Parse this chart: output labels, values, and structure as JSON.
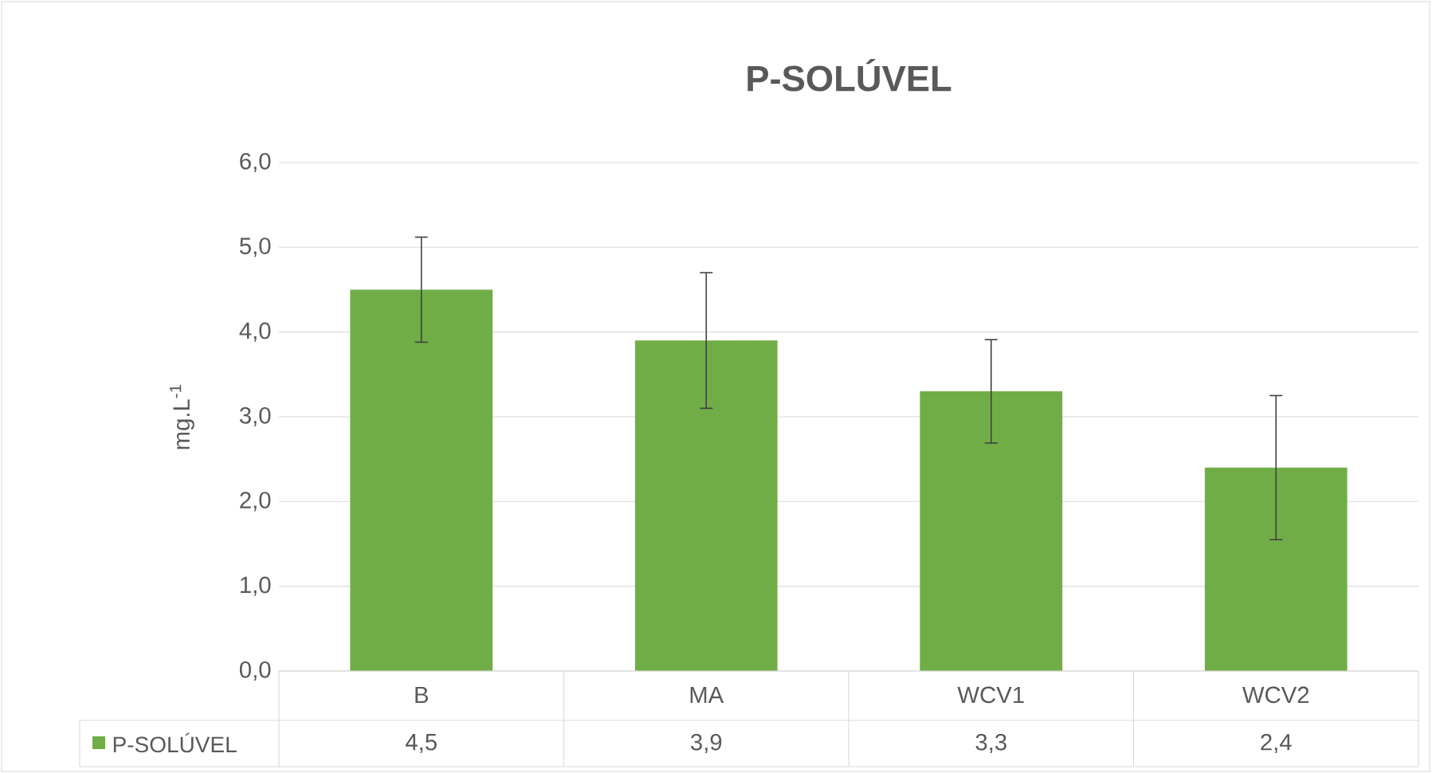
{
  "chart_data": {
    "type": "bar",
    "title": "P-SOLÚVEL",
    "ylabel": "mg.L$^{-1}$",
    "categories": [
      "B",
      "MA",
      "WCV1",
      "WCV2"
    ],
    "series": [
      {
        "name": "P-SOLÚVEL",
        "color": "#70ad47",
        "values": [
          4.5,
          3.9,
          3.3,
          2.4
        ],
        "errors": [
          0.62,
          0.8,
          0.61,
          0.85
        ],
        "value_labels": [
          "4,5",
          "3,9",
          "3,3",
          "2,4"
        ]
      }
    ],
    "ylim": [
      0,
      6
    ],
    "yticks": [
      {
        "value": 0,
        "label": "0,0"
      },
      {
        "value": 1,
        "label": "1,0"
      },
      {
        "value": 2,
        "label": "2,0"
      },
      {
        "value": 3,
        "label": "3,0"
      },
      {
        "value": 4,
        "label": "4,0"
      },
      {
        "value": 5,
        "label": "5,0"
      },
      {
        "value": 6,
        "label": "6,0"
      }
    ],
    "grid": "y",
    "legend": "bottom left"
  }
}
